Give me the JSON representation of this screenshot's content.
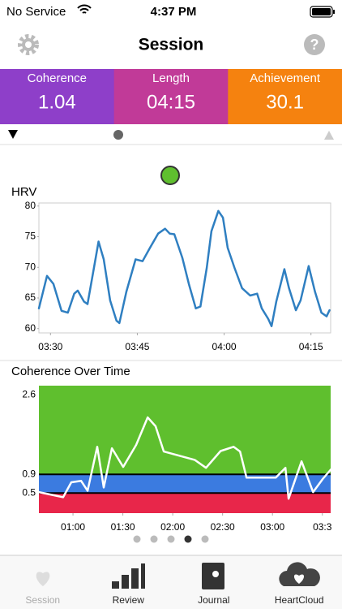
{
  "status": {
    "carrier": "No Service",
    "time": "4:37 PM"
  },
  "nav": {
    "title": "Session"
  },
  "stats": [
    {
      "label": "Coherence",
      "value": 1.04,
      "color": "#8e3fc9"
    },
    {
      "label": "Length",
      "value": "04:15",
      "color": "#c13a98"
    },
    {
      "label": "Achievement",
      "value": 30.1,
      "color": "#f5820f"
    }
  ],
  "charts": [
    {
      "type": "line",
      "title": "HRV",
      "color": "#2f7fc1",
      "x": [
        208.0,
        209.4,
        210.5,
        211.9,
        213.0,
        214.1,
        214.7,
        215.8,
        216.4,
        217.5,
        218.3,
        219.2,
        220.3,
        221.4,
        221.9,
        223.1,
        224.7,
        225.9,
        227.2,
        228.6,
        229.8,
        230.6,
        231.4,
        232.8,
        233.9,
        235.1,
        235.9,
        237.0,
        237.8,
        239.0,
        239.8,
        240.6,
        241.8,
        243.1,
        244.5,
        245.7,
        246.5,
        247.6,
        248.2,
        249.0,
        250.4,
        251.2,
        252.4,
        253.2,
        254.6,
        255.7,
        256.8,
        257.7,
        258.2
      ],
      "values": [
        63.3,
        68.6,
        67.3,
        62.9,
        62.6,
        65.7,
        66.2,
        64.4,
        64.0,
        69.9,
        74.2,
        71.3,
        64.6,
        61.3,
        60.9,
        66.0,
        71.3,
        71.0,
        73.2,
        75.5,
        76.3,
        75.5,
        75.4,
        71.5,
        67.3,
        63.3,
        63.6,
        69.9,
        75.9,
        79.2,
        78.1,
        73.2,
        69.9,
        66.6,
        65.4,
        65.7,
        63.3,
        61.6,
        60.4,
        64.4,
        69.7,
        66.6,
        63.0,
        64.6,
        70.2,
        66.0,
        62.6,
        62.0,
        63.0
      ],
      "xlim": [
        208,
        258.4
      ],
      "ylim": [
        59.3,
        80.5
      ],
      "xticks": [
        {
          "value": 210,
          "label": "03:30"
        },
        {
          "value": 225,
          "label": "03:45"
        },
        {
          "value": 240,
          "label": "04:00"
        },
        {
          "value": 255,
          "label": "04:15"
        }
      ],
      "yticks": [
        60,
        65,
        70,
        75,
        80
      ]
    },
    {
      "type": "zones-line",
      "title": "Coherence Over Time",
      "color": "#ffffff",
      "zone_colors": [
        "#e8264a",
        "#3b7be0",
        "#5fbf2e"
      ],
      "x": [
        39.5,
        54.1,
        59.0,
        64.9,
        68.8,
        74.6,
        78.5,
        83.4,
        90.2,
        98.0,
        104.9,
        109.7,
        114.6,
        133.2,
        140.0,
        148.8,
        156.6,
        160.5,
        164.4,
        182.0,
        187.8,
        189.7,
        197.5,
        204.4,
        210.2,
        215
      ],
      "values": [
        0.52,
        0.41,
        0.73,
        0.76,
        0.55,
        1.49,
        0.62,
        1.46,
        1.06,
        1.53,
        2.12,
        1.93,
        1.39,
        1.21,
        1.04,
        1.4,
        1.49,
        1.39,
        0.83,
        0.83,
        1.04,
        0.38,
        1.18,
        0.52,
        0.8,
        1.0
      ],
      "xlim": [
        39.5,
        215
      ],
      "ylim": [
        0.07,
        2.8
      ],
      "xticks": [
        {
          "value": 60,
          "label": "01:00"
        },
        {
          "value": 90,
          "label": "01:30"
        },
        {
          "value": 120,
          "label": "02:00"
        },
        {
          "value": 150,
          "label": "02:30"
        },
        {
          "value": 180,
          "label": "03:00"
        },
        {
          "value": 210,
          "label": "03:3"
        }
      ],
      "yticks": [
        0.5,
        0.9,
        2.6
      ]
    }
  ],
  "tabs": [
    "Session",
    "Review",
    "Journal",
    "HeartCloud"
  ]
}
